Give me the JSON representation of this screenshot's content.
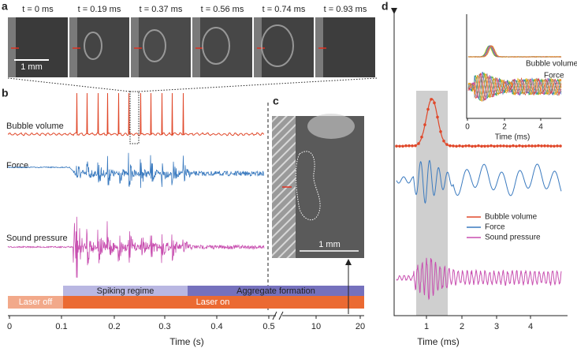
{
  "panel_a": {
    "label": "a",
    "frames": [
      "t = 0 ms",
      "t = 0.19 ms",
      "t = 0.37 ms",
      "t = 0.56 ms",
      "t = 0.74 ms",
      "t = 0.93 ms"
    ],
    "scale": "1 mm"
  },
  "panel_b": {
    "label": "b",
    "traces": [
      "Bubble volume",
      "Force",
      "Sound pressure"
    ],
    "phases": [
      "Spiking regime",
      "Aggregate formation"
    ],
    "laser": [
      "Laser off",
      "Laser on"
    ],
    "ticks": [
      "0",
      "0.1",
      "0.2",
      "0.3",
      "0.4",
      "0.5",
      "10",
      "20"
    ],
    "xlabel": "Time (s)"
  },
  "panel_c": {
    "label": "c",
    "scale": "1 mm"
  },
  "panel_d": {
    "label": "d",
    "ticks": [
      "1",
      "2",
      "3",
      "4"
    ],
    "xlabel": "Time (ms)",
    "inset": {
      "ticks": [
        "0",
        "2",
        "4"
      ],
      "xlabel": "Time (ms)",
      "labels": [
        "Bubble volume",
        "Force"
      ]
    },
    "legend": [
      "Bubble volume",
      "Force",
      "Sound pressure"
    ]
  }
}
